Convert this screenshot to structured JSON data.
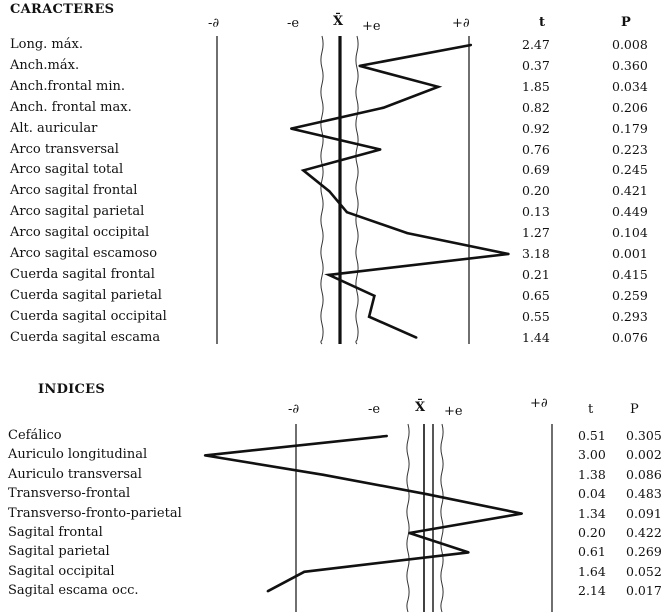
{
  "chart_data": [
    {
      "type": "line",
      "title": "CARACTERES",
      "header_labels": {
        "minus_d": "-∂",
        "minus_e": "-e",
        "mean": "X̄",
        "plus_e": "+e",
        "plus_d": "+∂",
        "t": "t",
        "p": "P"
      },
      "rows": [
        {
          "label": "Long. máx.",
          "t": "2.47",
          "p": "0.008"
        },
        {
          "label": "Anch.máx.",
          "t": "0.37",
          "p": "0.360"
        },
        {
          "label": "Anch.frontal min.",
          "t": "1.85",
          "p": "0.034"
        },
        {
          "label": "Anch. frontal max.",
          "t": "0.82",
          "p": "0.206"
        },
        {
          "label": "Alt. auricular",
          "t": "0.92",
          "p": "0.179"
        },
        {
          "label": "Arco transversal",
          "t": "0.76",
          "p": "0.223"
        },
        {
          "label": "Arco sagital total",
          "t": "0.69",
          "p": "0.245"
        },
        {
          "label": "Arco sagital frontal",
          "t": "0.20",
          "p": "0.421"
        },
        {
          "label": "Arco sagital parietal",
          "t": "0.13",
          "p": "0.449"
        },
        {
          "label": "Arco sagital occipital",
          "t": "1.27",
          "p": "0.104"
        },
        {
          "label": "Arco sagital escamoso",
          "t": "3.18",
          "p": "0.001"
        },
        {
          "label": "Cuerda sagital frontal",
          "t": "0.21",
          "p": "0.415"
        },
        {
          "label": "Cuerda sagital parietal",
          "t": "0.65",
          "p": "0.259"
        },
        {
          "label": "Cuerda sagital occipital",
          "t": "0.55",
          "p": "0.293"
        },
        {
          "label": "Cuerda sagital escama",
          "t": "1.44",
          "p": "0.076"
        }
      ],
      "profile_values": [
        2.47,
        0.37,
        1.85,
        0.82,
        -0.92,
        0.76,
        -0.69,
        -0.2,
        0.13,
        1.27,
        3.18,
        -0.21,
        0.65,
        0.55,
        1.44
      ]
    },
    {
      "type": "line",
      "title": "INDICES",
      "header_labels": {
        "minus_d": "-∂",
        "minus_e": "-e",
        "mean": "X̄",
        "plus_e": "+e",
        "plus_d": "+∂",
        "t": "t",
        "p": "P"
      },
      "rows": [
        {
          "label": "Cefálico",
          "t": "0.51",
          "p": "0.305"
        },
        {
          "label": "Auriculo longitudinal",
          "t": "3.00",
          "p": "0.002"
        },
        {
          "label": "Auriculo transversal",
          "t": "1.38",
          "p": "0.086"
        },
        {
          "label": "Transverso-frontal",
          "t": "0.04",
          "p": "0.483"
        },
        {
          "label": "Transverso-fronto-parietal",
          "t": "1.34",
          "p": "0.091"
        },
        {
          "label": "Sagital frontal",
          "t": "0.20",
          "p": "0.422"
        },
        {
          "label": "Sagital parietal",
          "t": "0.61",
          "p": "0.269"
        },
        {
          "label": "Sagital occipital",
          "t": "1.64",
          "p": "0.052"
        },
        {
          "label": "Sagital escama occ.",
          "t": "2.14",
          "p": "0.017"
        }
      ],
      "profile_values": [
        -0.51,
        -3.0,
        -1.38,
        0.04,
        1.34,
        -0.2,
        0.61,
        -1.64,
        -2.14
      ]
    }
  ]
}
